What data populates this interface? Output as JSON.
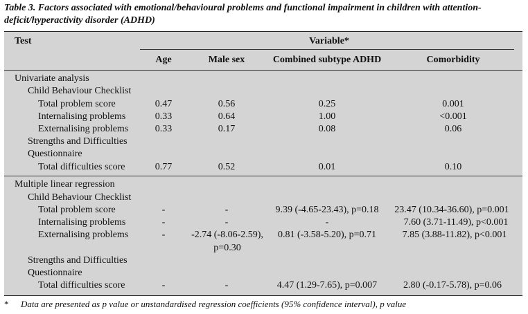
{
  "caption": "Table 3. Factors associated with emotional/behavioural problems and functional impairment in children with attention-deficit/hyperactivity disorder (ADHD)",
  "header": {
    "test": "Test",
    "variable": "Variable*",
    "columns": [
      "Age",
      "Male sex",
      "Combined subtype ADHD",
      "Comorbidity"
    ]
  },
  "univariate": {
    "title": "Univariate analysis",
    "cbcl_title": "Child Behaviour Checklist",
    "rows": [
      {
        "label": "Total problem score",
        "age": "0.47",
        "male": "0.56",
        "combined": "0.25",
        "comorbidity": "0.001"
      },
      {
        "label": "Internalising problems",
        "age": "0.33",
        "male": "0.64",
        "combined": "1.00",
        "comorbidity": "<0.001"
      },
      {
        "label": "Externalising problems",
        "age": "0.33",
        "male": "0.17",
        "combined": "0.08",
        "comorbidity": "0.06"
      }
    ],
    "sdq_title_1": "Strengths and Difficulties",
    "sdq_title_2": "Questionnaire",
    "sdq_row": {
      "label": "Total difficulties score",
      "age": "0.77",
      "male": "0.52",
      "combined": "0.01",
      "comorbidity": "0.10"
    }
  },
  "regression": {
    "title": "Multiple linear regression",
    "cbcl_title": "Child Behaviour Checklist",
    "rows": [
      {
        "label": "Total problem score",
        "age": "-",
        "male": "-",
        "combined": "9.39 (-4.65-23.43), p=0.18",
        "comorbidity": "23.47 (10.34-36.60), p=0.001"
      },
      {
        "label": "Internalising problems",
        "age": "-",
        "male": "-",
        "combined": "-",
        "comorbidity": "7.60 (3.71-11.49), p<0.001"
      },
      {
        "label": "Externalising problems",
        "age": "-",
        "male_1": "-2.74 (-8.06-2.59),",
        "male_2": "p=0.30",
        "combined": "0.81 (-3.58-5.20), p=0.71",
        "comorbidity": "7.85 (3.88-11.82), p<0.001"
      }
    ],
    "sdq_title_1": "Strengths and Difficulties",
    "sdq_title_2": "Questionnaire",
    "sdq_row": {
      "label": "Total difficulties score",
      "age": "-",
      "male": "-",
      "combined": "4.47 (1.29-7.65), p=0.007",
      "comorbidity": "2.80 (-0.17-5.78), p=0.06"
    }
  },
  "footnote": {
    "marker": "*",
    "text": "Data are presented as p value or unstandardised regression coefficients (95% confidence interval), p value"
  }
}
